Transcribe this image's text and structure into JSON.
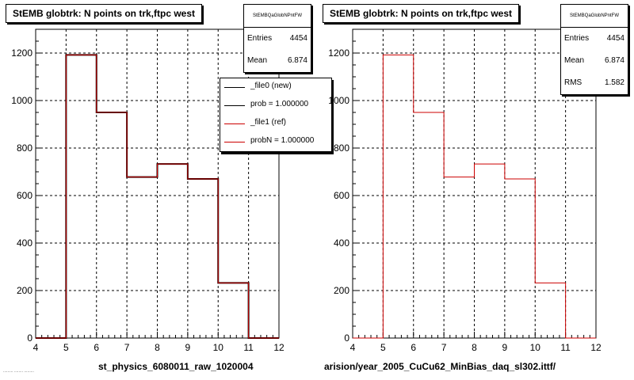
{
  "chart_data": [
    {
      "type": "bar",
      "title": "StEMB globtrk: N points on trk,ftpc west",
      "stats_name": "StEMBQaGlobNPntFW",
      "stats": [
        {
          "label": "Entries",
          "value": "4454"
        },
        {
          "label": "Mean",
          "value": "6.874"
        }
      ],
      "legend": [
        {
          "label": "_file0 (new)",
          "color": "#000000"
        },
        {
          "label": "prob = 1.000000",
          "color": "#000000"
        },
        {
          "label": "_file1 (ref)",
          "color": "#cc0000"
        },
        {
          "label": "probN = 1.000000",
          "color": "#cc0000"
        }
      ],
      "xlabel": "st_physics_6080011_raw_1020004",
      "ylabel": "",
      "xlim": [
        4,
        12
      ],
      "ylim": [
        0,
        1300
      ],
      "xticks": [
        4,
        5,
        6,
        7,
        8,
        9,
        10,
        11,
        12
      ],
      "yticks": [
        0,
        200,
        400,
        600,
        800,
        1000,
        1200
      ],
      "grid": true,
      "bin_edges": [
        4,
        5,
        6,
        7,
        8,
        9,
        10,
        11,
        12
      ],
      "series": [
        {
          "name": "_file0 (new)",
          "color": "#000000",
          "values": [
            0,
            1192,
            950,
            678,
            733,
            670,
            232,
            0
          ]
        },
        {
          "name": "_file1 (ref)",
          "color": "#cc0000",
          "values": [
            0,
            1192,
            950,
            678,
            733,
            670,
            232,
            0
          ]
        }
      ]
    },
    {
      "type": "bar",
      "title": "StEMB globtrk: N points on trk,ftpc west",
      "stats_name": "StEMBQaGlobNPntFW",
      "stats": [
        {
          "label": "Entries",
          "value": "4454"
        },
        {
          "label": "Mean",
          "value": "6.874"
        },
        {
          "label": "RMS",
          "value": "1.582"
        }
      ],
      "legend": [],
      "xlabel": "arision/year_2005_CuCu62_MinBias_daq_sl302.ittf/",
      "ylabel": "",
      "xlim": [
        4,
        12
      ],
      "ylim": [
        0,
        1300
      ],
      "xticks": [
        4,
        5,
        6,
        7,
        8,
        9,
        10,
        11,
        12
      ],
      "yticks": [
        0,
        200,
        400,
        600,
        800,
        1000,
        1200
      ],
      "grid": true,
      "bin_edges": [
        4,
        5,
        6,
        7,
        8,
        9,
        10,
        11,
        12
      ],
      "series": [
        {
          "name": "",
          "color": "#cc0000",
          "values": [
            0,
            1192,
            950,
            678,
            733,
            670,
            232,
            0
          ]
        }
      ]
    }
  ],
  "footer_text": "......... ........ ........."
}
